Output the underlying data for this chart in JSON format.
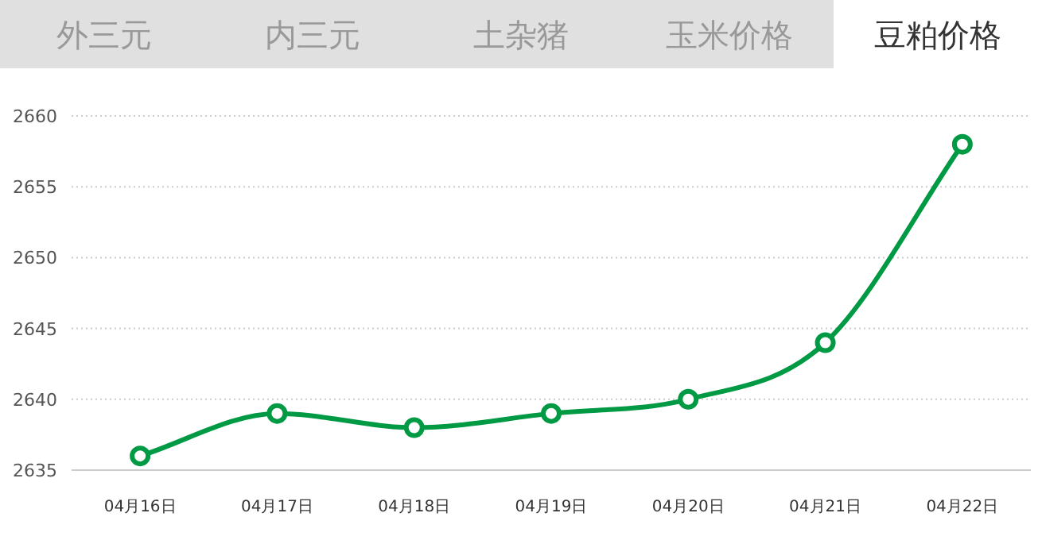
{
  "chart_data": {
    "type": "line",
    "title": "豆粕价格",
    "annotations": [
      "外三元",
      "内三元",
      "土杂猪",
      "玉米价格"
    ],
    "categories": [
      "04月16日",
      "04月17日",
      "04月18日",
      "04月19日",
      "04月20日",
      "04月21日",
      "04月22日"
    ],
    "series": [
      {
        "color": "#009944",
        "values": [
          2636,
          2639,
          2638,
          2639,
          2640,
          2644,
          2658
        ]
      }
    ],
    "ylim": [
      2635,
      2660
    ],
    "yticks": [
      2635,
      2640,
      2645,
      2650,
      2655,
      2660
    ],
    "grid": "y",
    "marker": "circle",
    "line_style": "solid"
  }
}
